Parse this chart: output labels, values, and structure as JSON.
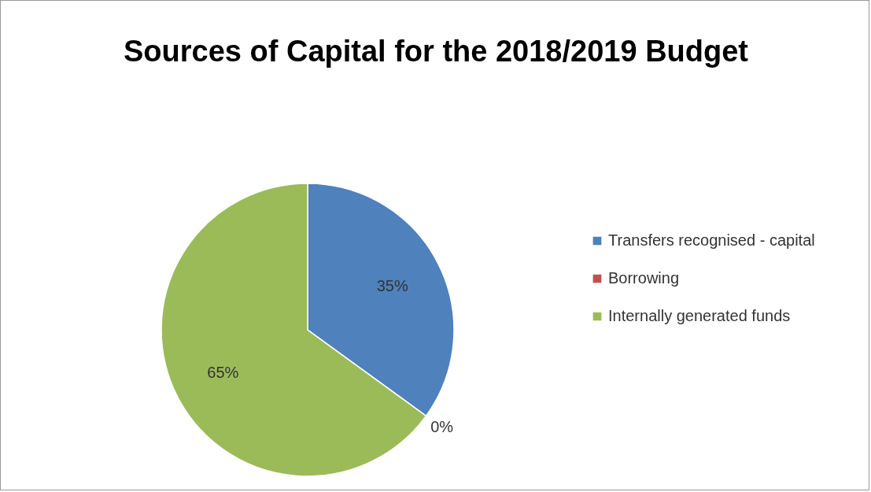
{
  "chart_data": {
    "type": "pie",
    "title": "Sources of Capital for the 2018/2019 Budget",
    "categories": [
      "Transfers recognised - capital",
      "Borrowing",
      "Internally generated funds"
    ],
    "values": [
      35,
      0,
      65
    ],
    "colors": [
      "#4f81bd",
      "#c0504d",
      "#9bbb59"
    ],
    "value_labels": [
      "35%",
      "0%",
      "65%"
    ],
    "legend": "right"
  }
}
